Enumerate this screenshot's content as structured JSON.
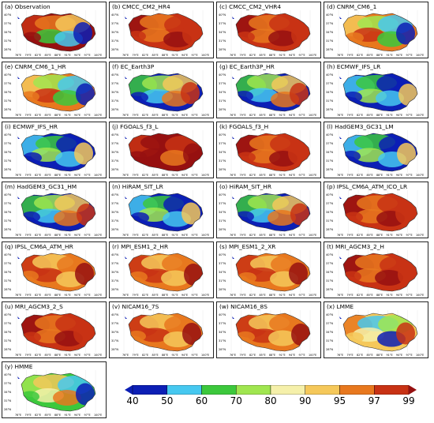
{
  "panels": [
    {
      "label": "(a) Observation",
      "scheme": "obs"
    },
    {
      "label": "(b) CMCC_CM2_HR4",
      "scheme": "hot"
    },
    {
      "label": "(c) CMCC_CM2_VHR4",
      "scheme": "hot"
    },
    {
      "label": "(d) CNRM_CM6_1",
      "scheme": "mixwarm"
    },
    {
      "label": "(e) CNRM_CM6_1_HR",
      "scheme": "mixwarm"
    },
    {
      "label": "(f) EC_Earth3P",
      "scheme": "mixcool"
    },
    {
      "label": "(g) EC_Earth3P_HR",
      "scheme": "mixcool"
    },
    {
      "label": "(h) ECMWF_IFS_LR",
      "scheme": "cool"
    },
    {
      "label": "(i) ECMWF_IFS_HR",
      "scheme": "cool"
    },
    {
      "label": "(j) FGOALS_f3_L",
      "scheme": "veryhot"
    },
    {
      "label": "(k) FGOALS_f3_H",
      "scheme": "hot"
    },
    {
      "label": "(l) HadGEM3_GC31_LM",
      "scheme": "cool"
    },
    {
      "label": "(m) HadGEM3_GC31_HM",
      "scheme": "mixcool"
    },
    {
      "label": "(n) HiRAM_SIT_LR",
      "scheme": "cool"
    },
    {
      "label": "(o) HiRAM_SIT_HR",
      "scheme": "mixcool"
    },
    {
      "label": "(p) IPSL_CM6A_ATM_ICO_LR",
      "scheme": "hot"
    },
    {
      "label": "(q) IPSL_CM6A_ATM_HR",
      "scheme": "warm"
    },
    {
      "label": "(r) MPI_ESM1_2_HR",
      "scheme": "warm"
    },
    {
      "label": "(s) MPI_ESM1_2_XR",
      "scheme": "warm"
    },
    {
      "label": "(t) MRI_AGCM3_2_H",
      "scheme": "hot"
    },
    {
      "label": "(u) MRI_AGCM3_2_S",
      "scheme": "hot"
    },
    {
      "label": "(v) NICAM16_7S",
      "scheme": "warm"
    },
    {
      "label": "(w) NICAM16_8S",
      "scheme": "warm"
    },
    {
      "label": "(x) LMME",
      "scheme": "lmme"
    },
    {
      "label": "(y) HMME",
      "scheme": "hmme"
    }
  ],
  "axes": {
    "lat_labels": [
      "40°N",
      "37°N",
      "34°N",
      "31°N",
      "28°N"
    ],
    "lon_labels": [
      "76°E",
      "79°E",
      "82°E",
      "85°E",
      "88°E",
      "91°E",
      "94°E",
      "97°E",
      "100°E"
    ]
  },
  "colorbar": {
    "ticks": [
      "40",
      "50",
      "60",
      "70",
      "80",
      "90",
      "95",
      "97",
      "99"
    ],
    "colors": [
      "#0c1fb5",
      "#46c8f0",
      "#3cc83c",
      "#a0e650",
      "#f5f0aa",
      "#f5c85a",
      "#e8781e",
      "#c83214",
      "#961010"
    ]
  },
  "scheme_colors": {
    "obs": [
      "#961010",
      "#c83214",
      "#e8781e",
      "#f5c85a",
      "#3cc83c",
      "#46c8f0",
      "#0c1fb5"
    ],
    "hot": [
      "#c83214",
      "#961010",
      "#e8781e",
      "#c83214",
      "#e8781e",
      "#961010",
      "#c83214"
    ],
    "veryhot": [
      "#961010",
      "#c83214",
      "#961010",
      "#c83214",
      "#961010",
      "#e8781e",
      "#961010"
    ],
    "warm": [
      "#e8781e",
      "#c83214",
      "#f5c85a",
      "#e8781e",
      "#c83214",
      "#f5c85a",
      "#961010"
    ],
    "mixwarm": [
      "#e8781e",
      "#f5c85a",
      "#a0e650",
      "#46c8f0",
      "#c83214",
      "#3cc83c",
      "#0c1fb5"
    ],
    "mixcool": [
      "#0c1fb5",
      "#3cc83c",
      "#a0e650",
      "#f5c85a",
      "#46c8f0",
      "#e8781e",
      "#c83214"
    ],
    "cool": [
      "#0c1fb5",
      "#46c8f0",
      "#3cc83c",
      "#0c1fb5",
      "#a0e650",
      "#46c8f0",
      "#f5c85a"
    ],
    "lmme": [
      "#f5c85a",
      "#e8781e",
      "#46c8f0",
      "#a0e650",
      "#f5f0aa",
      "#0c1fb5",
      "#c83214"
    ],
    "hmme": [
      "#3cc83c",
      "#a0e650",
      "#f5c85a",
      "#46c8f0",
      "#f5f0aa",
      "#e8781e",
      "#0c1fb5"
    ]
  }
}
